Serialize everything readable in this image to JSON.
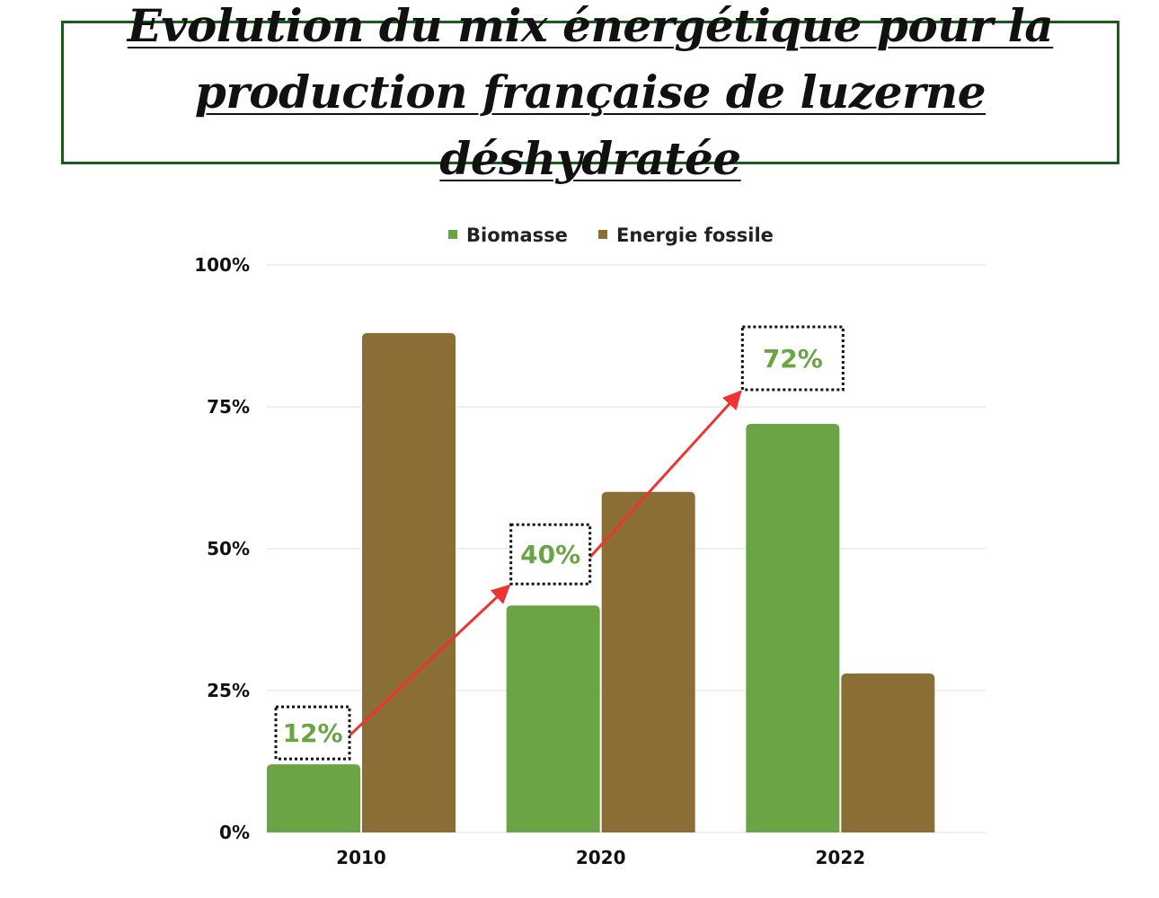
{
  "title": "Evolution du mix énergétique pour la production française de luzerne déshydratée",
  "colors": {
    "biomasse": "#6aa444",
    "fossile": "#8b6e35",
    "arrow": "#ee3333",
    "title_border": "#1e5a1e",
    "grid": "#e2e2e2"
  },
  "chart_data": {
    "type": "bar",
    "categories": [
      "2010",
      "2020",
      "2022"
    ],
    "series": [
      {
        "name": "Biomasse",
        "values": [
          12,
          40,
          72
        ]
      },
      {
        "name": "Energie fossile",
        "values": [
          88,
          60,
          28
        ]
      }
    ],
    "ylim": [
      0,
      100
    ],
    "yticks": [
      0,
      25,
      50,
      75,
      100
    ],
    "ytick_labels": [
      "0%",
      "25%",
      "50%",
      "75%",
      "100%"
    ],
    "legend_position": "top",
    "grid": true,
    "annotations": [
      {
        "label": "12%",
        "category": "2010",
        "value": 12
      },
      {
        "label": "40%",
        "category": "2020",
        "value": 40
      },
      {
        "label": "72%",
        "category": "2022",
        "value": 72
      }
    ]
  }
}
